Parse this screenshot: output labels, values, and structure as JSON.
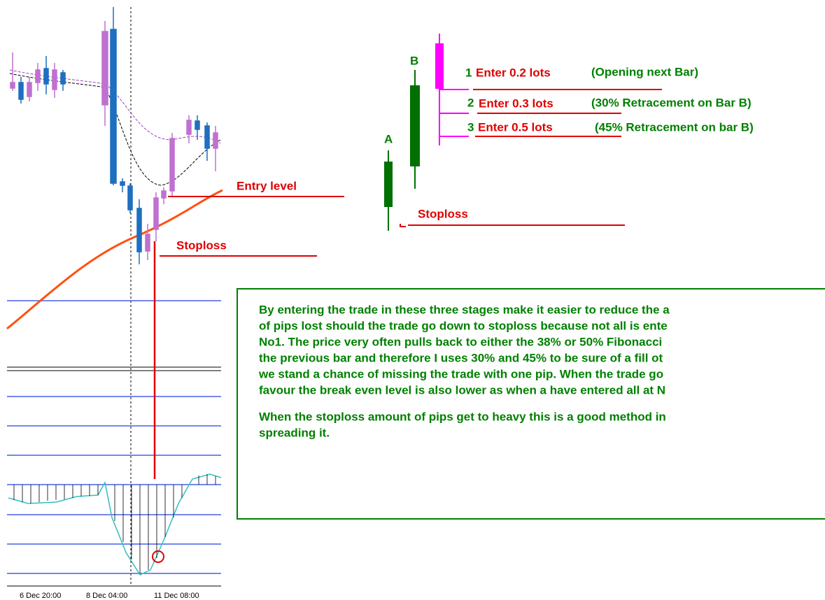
{
  "left_chart": {
    "entry_label": "Entry level",
    "stoploss_label": "Stoploss",
    "x_axis_labels": [
      "6 Dec 20:00",
      "8 Dec 04:00",
      "11 Dec 08:00"
    ]
  },
  "right_diagram": {
    "bar_a": "A",
    "bar_b": "B",
    "stoploss_label": "Stoploss",
    "entries": [
      {
        "number": "1",
        "text": "Enter 0.2 lots",
        "note": "(Opening next Bar)"
      },
      {
        "number": "2",
        "text": "Enter 0.3 lots",
        "note": "(30% Retracement on Bar B)"
      },
      {
        "number": "3",
        "text": "Enter 0.5 lots",
        "note": "(45% Retracement on bar B)"
      }
    ]
  },
  "note_box": {
    "paragraph_1": [
      "By entering the trade in these three stages make it easier to reduce the a",
      "of pips lost should the trade go down to stoploss because not all is ente",
      "No1. The price very often pulls back to either the 38% or 50% Fibonacci",
      "the previous bar and therefore I uses 30% and 45% to be sure of a fill ot",
      "we stand a chance of missing the trade with one pip. When the trade go",
      "favour the break even level is also lower as when a have entered all at N"
    ],
    "paragraph_2": [
      "When the stoploss amount of pips get to heavy this is a good method in",
      "spreading it."
    ]
  }
}
